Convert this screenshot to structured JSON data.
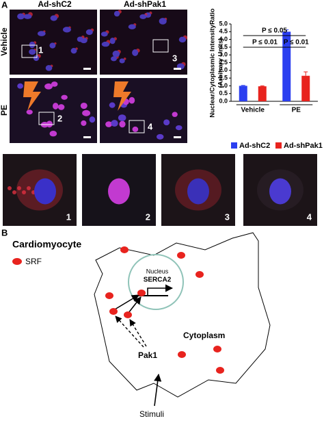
{
  "panel_a": {
    "label": "A",
    "columns": [
      "Ad-shC2",
      "Ad-shPak1"
    ],
    "rows": [
      "Vehicle",
      "PE"
    ],
    "grid_numbers": [
      "1",
      "3",
      "2",
      "4"
    ],
    "zoom_numbers": [
      "1",
      "2",
      "3",
      "4"
    ]
  },
  "chart_data": {
    "type": "bar",
    "ylabel": [
      "Nuclear/Cytoplasmic IntensityRatio",
      "(Arbitrary Units)"
    ],
    "categories": [
      "Vehicle",
      "PE"
    ],
    "series": [
      {
        "name": "Ad-shC2",
        "color": "#2b3ff0",
        "values": [
          1.0,
          4.5
        ],
        "errors": [
          0.03,
          0.12
        ]
      },
      {
        "name": "Ad-shPak1",
        "color": "#e8231e",
        "values": [
          0.97,
          1.65
        ],
        "errors": [
          0.03,
          0.25
        ]
      }
    ],
    "ylim": [
      0,
      5
    ],
    "yticks": [
      {
        "value": 0,
        "label": "0.0"
      },
      {
        "value": 0.5,
        "label": "0.5"
      },
      {
        "value": 1,
        "label": "1.0"
      },
      {
        "value": 1.5,
        "label": "1.5"
      },
      {
        "value": 2,
        "label": "2.0"
      },
      {
        "value": 2.5,
        "label": "2.5"
      },
      {
        "value": 3,
        "label": "3.0"
      },
      {
        "value": 3.5,
        "label": "3.5"
      },
      {
        "value": 4,
        "label": "4.0"
      },
      {
        "value": 4.5,
        "label": "4.5"
      },
      {
        "value": 5,
        "label": "5.0"
      }
    ],
    "annotations": [
      "P ≤ 0.05",
      "P ≤ 0.01",
      "P ≤ 0.01"
    ],
    "legend": "bottom"
  },
  "panel_b": {
    "label": "B",
    "title": "Cardiomyocyte",
    "legend": "SRF",
    "nucleus": "Nucleus",
    "gene": "SERCA2",
    "cytoplasm": "Cytoplasm",
    "kinase": "Pak1",
    "stimuli": "Stimuli"
  }
}
